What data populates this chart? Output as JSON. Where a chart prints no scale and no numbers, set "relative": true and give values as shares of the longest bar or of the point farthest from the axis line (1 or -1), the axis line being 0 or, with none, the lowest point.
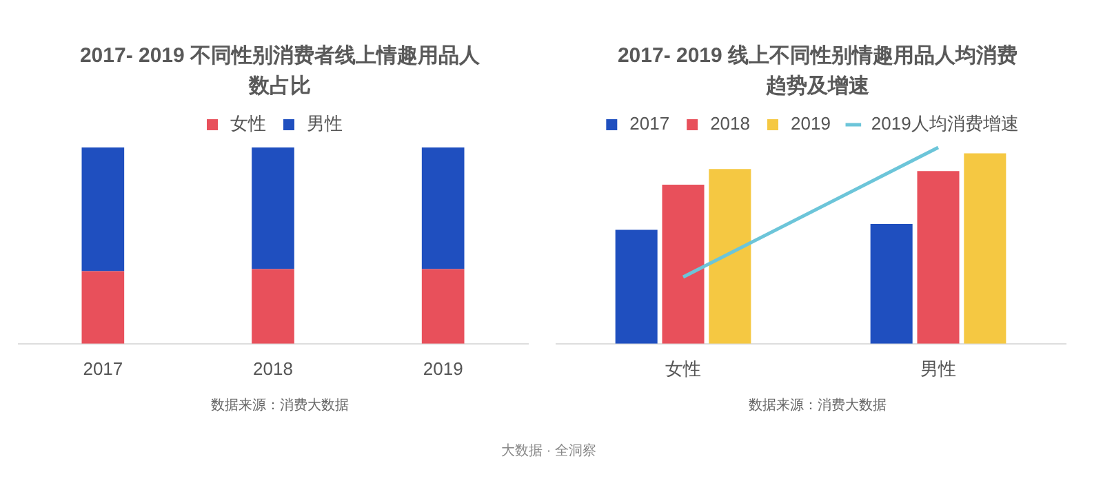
{
  "chart_data": [
    {
      "type": "bar",
      "title": "2017- 2019 不同性别消费者线上情趣用品人数占比",
      "categories": [
        "2017",
        "2018",
        "2019"
      ],
      "stacked": true,
      "relative": true,
      "legend": "top",
      "series": [
        {
          "name": "女性",
          "color": "#e8505b",
          "values": [
            0.37,
            0.38,
            0.38
          ]
        },
        {
          "name": "男性",
          "color": "#1f4fbf",
          "values": [
            0.63,
            0.62,
            0.62
          ]
        }
      ],
      "annotations": [
        "数据来源：消费大数据"
      ]
    },
    {
      "type": "bar",
      "title": "2017- 2019 线上不同性别情趣用品人均消费趋势及增速",
      "categories": [
        "女性",
        "男性"
      ],
      "relative": true,
      "legend": "top",
      "series": [
        {
          "name": "2017",
          "color": "#1f4fbf",
          "values": [
            0.58,
            0.61
          ]
        },
        {
          "name": "2018",
          "color": "#e8505b",
          "values": [
            0.81,
            0.88
          ]
        },
        {
          "name": "2019",
          "color": "#f5c842",
          "values": [
            0.89,
            0.97
          ]
        },
        {
          "name": "2019人均消费增速",
          "type": "line",
          "color": "#6cc5d9",
          "values": [
            0.34,
            1
          ]
        }
      ],
      "annotations": [
        "数据来源：消费大数据",
        "大数据 · 全洞察"
      ]
    }
  ]
}
